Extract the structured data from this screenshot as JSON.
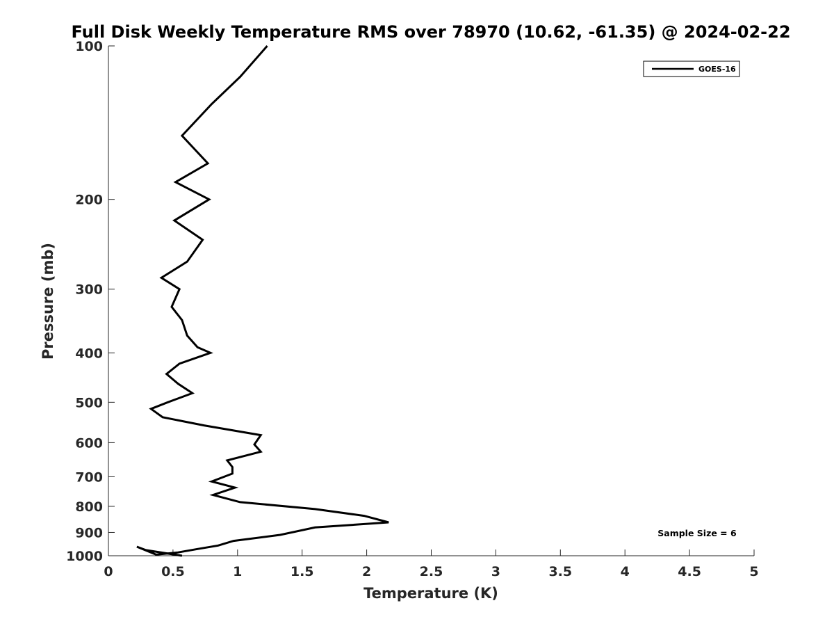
{
  "chart_data": {
    "type": "line",
    "title": "Full Disk Weekly Temperature RMS over 78970 (10.62, -61.35) @ 2024-02-22",
    "xlabel": "Temperature (K)",
    "ylabel": "Pressure (mb)",
    "xlim": [
      0,
      5
    ],
    "ylim": [
      100,
      1000
    ],
    "y_scale": "log",
    "y_reversed": true,
    "xticks": [
      0,
      0.5,
      1,
      1.5,
      2,
      2.5,
      3,
      3.5,
      4,
      4.5,
      5
    ],
    "xtick_labels": [
      "0",
      "0.5",
      "1",
      "1.5",
      "2",
      "2.5",
      "3",
      "3.5",
      "4",
      "4.5",
      "5"
    ],
    "yticks": [
      100,
      200,
      300,
      400,
      500,
      600,
      700,
      800,
      900,
      1000
    ],
    "ytick_labels": [
      "100",
      "200",
      "300",
      "400",
      "500",
      "600",
      "700",
      "800",
      "900",
      "1000"
    ],
    "grid": false,
    "legend_position": "top-right",
    "annotation": "Sample Size = 6",
    "series": [
      {
        "name": "GOES-16",
        "color": "#000000",
        "x": [
          1.23,
          1.02,
          0.8,
          0.57,
          0.77,
          0.52,
          0.78,
          0.51,
          0.73,
          0.61,
          0.41,
          0.55,
          0.49,
          0.57,
          0.61,
          0.69,
          0.79,
          0.55,
          0.45,
          0.54,
          0.65,
          0.46,
          0.33,
          0.42,
          0.74,
          1.18,
          1.13,
          1.18,
          0.92,
          0.96,
          0.96,
          0.8,
          0.98,
          0.81,
          1.02,
          1.6,
          1.98,
          2.17,
          1.6,
          1.33,
          0.97,
          0.85,
          0.69,
          0.54,
          0.37,
          0.22,
          0.29,
          0.57
        ],
        "y": [
          100,
          115,
          130,
          150,
          170,
          185,
          200,
          220,
          240,
          265,
          285,
          300,
          325,
          345,
          370,
          390,
          400,
          420,
          440,
          460,
          480,
          500,
          515,
          535,
          555,
          580,
          605,
          625,
          650,
          670,
          690,
          715,
          735,
          760,
          785,
          810,
          835,
          860,
          880,
          910,
          935,
          955,
          970,
          985,
          995,
          960,
          975,
          1000
        ]
      }
    ]
  }
}
